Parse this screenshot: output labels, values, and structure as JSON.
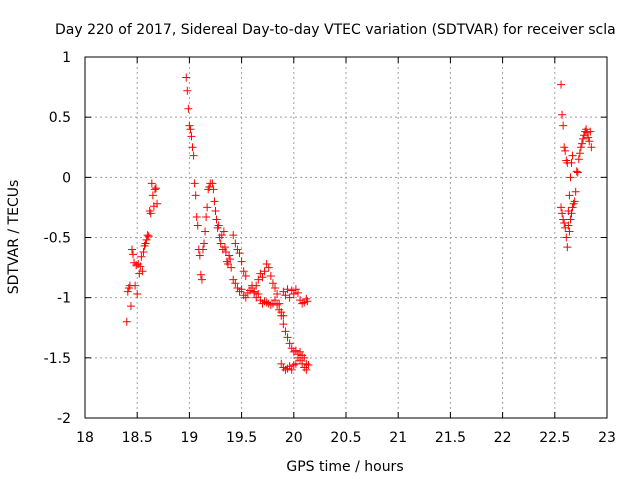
{
  "chart_data": {
    "type": "scatter",
    "title": "Day 220 of 2017, Sidereal Day-to-day VTEC variation (SDTVAR) for receiver scla",
    "xlabel": "GPS time / hours",
    "ylabel": "SDTVAR / TECUs",
    "xlim": [
      18,
      23
    ],
    "ylim": [
      -2,
      1
    ],
    "xticks": [
      "18",
      "18.5",
      "19",
      "19.5",
      "20",
      "20.5",
      "21",
      "21.5",
      "22",
      "22.5",
      "23"
    ],
    "yticks": [
      "1",
      "0.5",
      "0",
      "-0.5",
      "-1",
      "-1.5",
      "-2"
    ],
    "grid": true,
    "marker": "+",
    "colors": {
      "series": "#ff0000",
      "grid": "#a0a0a0",
      "axes": "#000000"
    },
    "series": [
      {
        "name": "SDTVAR",
        "points": [
          [
            18.4,
            -1.2
          ],
          [
            18.41,
            -0.95
          ],
          [
            18.42,
            -0.92
          ],
          [
            18.43,
            -0.9
          ],
          [
            18.44,
            -1.07
          ],
          [
            18.45,
            -0.6
          ],
          [
            18.46,
            -0.64
          ],
          [
            18.47,
            -0.71
          ],
          [
            18.48,
            -0.9
          ],
          [
            18.49,
            -0.73
          ],
          [
            18.5,
            -0.97
          ],
          [
            18.51,
            -0.72
          ],
          [
            18.52,
            -0.8
          ],
          [
            18.53,
            -0.74
          ],
          [
            18.54,
            -0.66
          ],
          [
            18.55,
            -0.78
          ],
          [
            18.56,
            -0.62
          ],
          [
            18.57,
            -0.57
          ],
          [
            18.58,
            -0.55
          ],
          [
            18.59,
            -0.52
          ],
          [
            18.6,
            -0.48
          ],
          [
            18.61,
            -0.49
          ],
          [
            18.62,
            -0.28
          ],
          [
            18.63,
            -0.3
          ],
          [
            18.64,
            -0.05
          ],
          [
            18.65,
            -0.15
          ],
          [
            18.66,
            -0.24
          ],
          [
            18.67,
            -0.1
          ],
          [
            18.68,
            -0.09
          ],
          [
            18.69,
            -0.22
          ],
          [
            18.97,
            0.83
          ],
          [
            18.98,
            0.72
          ],
          [
            18.99,
            0.57
          ],
          [
            19.0,
            0.43
          ],
          [
            19.01,
            0.4
          ],
          [
            19.02,
            0.34
          ],
          [
            19.03,
            0.25
          ],
          [
            19.04,
            0.18
          ],
          [
            19.05,
            -0.05
          ],
          [
            19.06,
            -0.15
          ],
          [
            19.07,
            -0.33
          ],
          [
            19.08,
            -0.4
          ],
          [
            19.09,
            -0.6
          ],
          [
            19.1,
            -0.65
          ],
          [
            19.11,
            -0.81
          ],
          [
            19.12,
            -0.85
          ],
          [
            19.13,
            -0.6
          ],
          [
            19.14,
            -0.55
          ],
          [
            19.15,
            -0.45
          ],
          [
            19.16,
            -0.33
          ],
          [
            19.17,
            -0.25
          ],
          [
            19.18,
            -0.1
          ],
          [
            19.19,
            -0.08
          ],
          [
            19.2,
            -0.05
          ],
          [
            19.22,
            -0.05
          ],
          [
            19.23,
            -0.1
          ],
          [
            19.24,
            -0.2
          ],
          [
            19.25,
            -0.28
          ],
          [
            19.26,
            -0.35
          ],
          [
            19.27,
            -0.42
          ],
          [
            19.28,
            -0.4
          ],
          [
            19.29,
            -0.5
          ],
          [
            19.3,
            -0.55
          ],
          [
            19.31,
            -0.48
          ],
          [
            19.32,
            -0.6
          ],
          [
            19.33,
            -0.45
          ],
          [
            19.34,
            -0.58
          ],
          [
            19.35,
            -0.62
          ],
          [
            19.36,
            -0.7
          ],
          [
            19.37,
            -0.72
          ],
          [
            19.38,
            -0.65
          ],
          [
            19.39,
            -0.68
          ],
          [
            19.4,
            -0.75
          ],
          [
            19.42,
            -0.85
          ],
          [
            19.44,
            -0.88
          ],
          [
            19.46,
            -0.92
          ],
          [
            19.48,
            -0.95
          ],
          [
            19.5,
            -0.93
          ],
          [
            19.52,
            -0.98
          ],
          [
            19.54,
            -1.0
          ],
          [
            19.56,
            -0.96
          ],
          [
            19.58,
            -0.94
          ],
          [
            19.6,
            -0.9
          ],
          [
            19.62,
            -0.96
          ],
          [
            19.64,
            -1.0
          ],
          [
            19.66,
            -0.97
          ],
          [
            19.68,
            -1.02
          ],
          [
            19.7,
            -1.05
          ],
          [
            19.72,
            -1.03
          ],
          [
            19.74,
            -1.04
          ],
          [
            19.76,
            -1.05
          ],
          [
            19.78,
            -1.06
          ],
          [
            19.8,
            -1.05
          ],
          [
            19.82,
            -1.02
          ],
          [
            19.84,
            -1.06
          ],
          [
            19.86,
            -1.1
          ],
          [
            19.88,
            -1.12
          ],
          [
            19.9,
            -1.15
          ],
          [
            19.9,
            -0.95
          ],
          [
            19.92,
            -0.98
          ],
          [
            19.94,
            -0.93
          ],
          [
            19.96,
            -1.0
          ],
          [
            19.98,
            -0.94
          ],
          [
            20.0,
            -0.97
          ],
          [
            20.02,
            -0.93
          ],
          [
            20.04,
            -0.96
          ],
          [
            20.06,
            -1.02
          ],
          [
            20.08,
            -1.05
          ],
          [
            20.1,
            -1.04
          ],
          [
            20.12,
            -1.01
          ],
          [
            20.13,
            -1.03
          ],
          [
            19.6,
            -0.92
          ],
          [
            19.62,
            -0.95
          ],
          [
            19.64,
            -0.9
          ],
          [
            19.66,
            -0.85
          ],
          [
            19.68,
            -0.8
          ],
          [
            19.7,
            -0.83
          ],
          [
            19.72,
            -0.78
          ],
          [
            19.74,
            -0.72
          ],
          [
            19.76,
            -0.75
          ],
          [
            19.78,
            -0.82
          ],
          [
            19.8,
            -0.88
          ],
          [
            19.82,
            -0.92
          ],
          [
            19.84,
            -0.97
          ],
          [
            19.86,
            -1.05
          ],
          [
            19.88,
            -1.15
          ],
          [
            19.9,
            -1.22
          ],
          [
            19.92,
            -1.28
          ],
          [
            19.94,
            -1.33
          ],
          [
            19.96,
            -1.38
          ],
          [
            19.98,
            -1.42
          ],
          [
            20.0,
            -1.45
          ],
          [
            20.02,
            -1.44
          ],
          [
            20.04,
            -1.47
          ],
          [
            20.06,
            -1.45
          ],
          [
            20.08,
            -1.48
          ],
          [
            20.1,
            -1.5
          ],
          [
            20.12,
            -1.55
          ],
          [
            20.14,
            -1.56
          ],
          [
            19.88,
            -1.55
          ],
          [
            19.9,
            -1.58
          ],
          [
            19.92,
            -1.6
          ],
          [
            19.94,
            -1.59
          ],
          [
            19.96,
            -1.57
          ],
          [
            19.98,
            -1.6
          ],
          [
            20.0,
            -1.56
          ],
          [
            20.02,
            -1.55
          ],
          [
            20.04,
            -1.5
          ],
          [
            20.06,
            -1.52
          ],
          [
            20.08,
            -1.55
          ],
          [
            20.1,
            -1.58
          ],
          [
            20.12,
            -1.6
          ],
          [
            19.42,
            -0.48
          ],
          [
            19.44,
            -0.55
          ],
          [
            19.46,
            -0.6
          ],
          [
            19.48,
            -0.63
          ],
          [
            19.5,
            -0.7
          ],
          [
            19.52,
            -0.78
          ],
          [
            19.54,
            -0.82
          ],
          [
            22.56,
            0.77
          ],
          [
            22.57,
            0.52
          ],
          [
            22.58,
            0.43
          ],
          [
            22.59,
            0.25
          ],
          [
            22.6,
            0.22
          ],
          [
            22.61,
            0.14
          ],
          [
            22.62,
            0.12
          ],
          [
            22.63,
            -0.4
          ],
          [
            22.64,
            -0.45
          ],
          [
            22.65,
            -0.35
          ],
          [
            22.66,
            -0.3
          ],
          [
            22.67,
            -0.25
          ],
          [
            22.68,
            -0.22
          ],
          [
            22.69,
            -0.2
          ],
          [
            22.7,
            -0.12
          ],
          [
            22.71,
            0.05
          ],
          [
            22.72,
            0.04
          ],
          [
            22.73,
            0.15
          ],
          [
            22.74,
            0.2
          ],
          [
            22.75,
            0.25
          ],
          [
            22.76,
            0.28
          ],
          [
            22.77,
            0.32
          ],
          [
            22.78,
            0.35
          ],
          [
            22.79,
            0.38
          ],
          [
            22.8,
            0.4
          ],
          [
            22.81,
            0.37
          ],
          [
            22.82,
            0.33
          ],
          [
            22.83,
            0.3
          ],
          [
            22.84,
            0.38
          ],
          [
            22.85,
            0.25
          ],
          [
            22.56,
            -0.25
          ],
          [
            22.57,
            -0.3
          ],
          [
            22.58,
            -0.35
          ],
          [
            22.59,
            -0.38
          ],
          [
            22.6,
            -0.42
          ],
          [
            22.61,
            -0.5
          ],
          [
            22.62,
            -0.58
          ],
          [
            22.63,
            -0.28
          ],
          [
            22.64,
            -0.15
          ],
          [
            22.65,
            0.0
          ],
          [
            22.66,
            0.12
          ],
          [
            22.67,
            0.18
          ]
        ]
      }
    ]
  }
}
